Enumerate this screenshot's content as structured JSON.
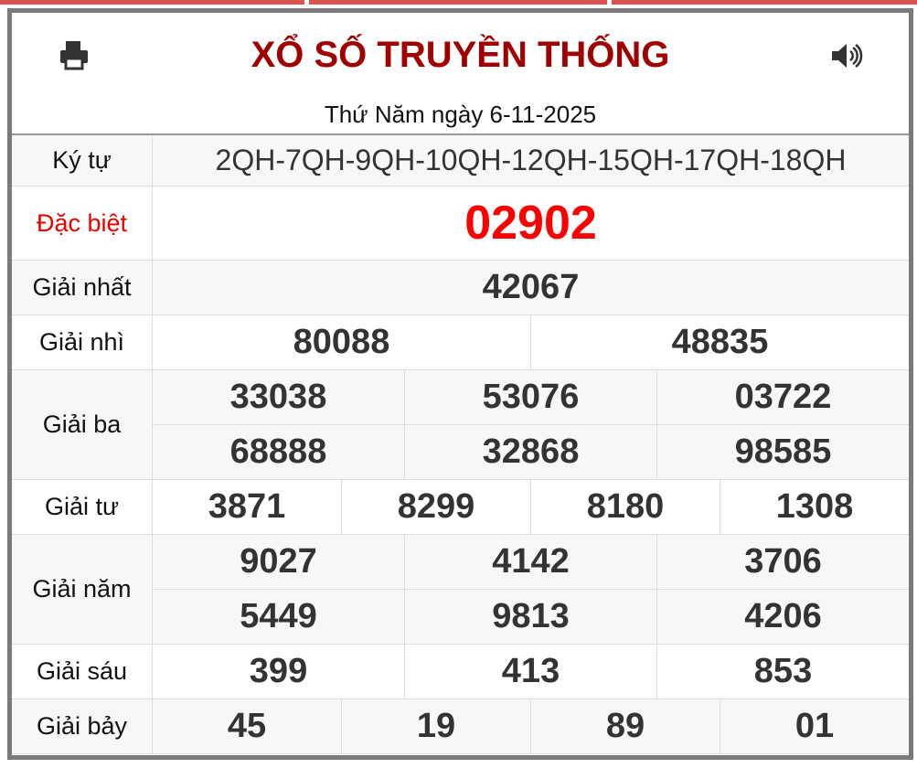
{
  "title": "XỔ SỐ TRUYỀN THỐNG",
  "date": "Thứ Năm ngày 6-11-2025",
  "icons": {
    "print": "print-icon",
    "sound": "volume-icon"
  },
  "colors": {
    "title": "#a00000",
    "special": "#ff0000",
    "tabs": "#d9534f"
  },
  "rows": [
    {
      "label": "Ký tự",
      "values": [
        [
          "2QH-7QH-9QH-10QH-12QH-15QH-17QH-18QH"
        ]
      ]
    },
    {
      "label": "Đặc biệt",
      "values": [
        [
          "02902"
        ]
      ]
    },
    {
      "label": "Giải nhất",
      "values": [
        [
          "42067"
        ]
      ]
    },
    {
      "label": "Giải nhì",
      "values": [
        [
          "80088",
          "48835"
        ]
      ]
    },
    {
      "label": "Giải ba",
      "values": [
        [
          "33038",
          "53076",
          "03722"
        ],
        [
          "68888",
          "32868",
          "98585"
        ]
      ]
    },
    {
      "label": "Giải tư",
      "values": [
        [
          "3871",
          "8299",
          "8180",
          "1308"
        ]
      ]
    },
    {
      "label": "Giải năm",
      "values": [
        [
          "9027",
          "4142",
          "3706"
        ],
        [
          "5449",
          "9813",
          "4206"
        ]
      ]
    },
    {
      "label": "Giải sáu",
      "values": [
        [
          "399",
          "413",
          "853"
        ]
      ]
    },
    {
      "label": "Giải bảy",
      "values": [
        [
          "45",
          "19",
          "89",
          "01"
        ]
      ]
    }
  ]
}
